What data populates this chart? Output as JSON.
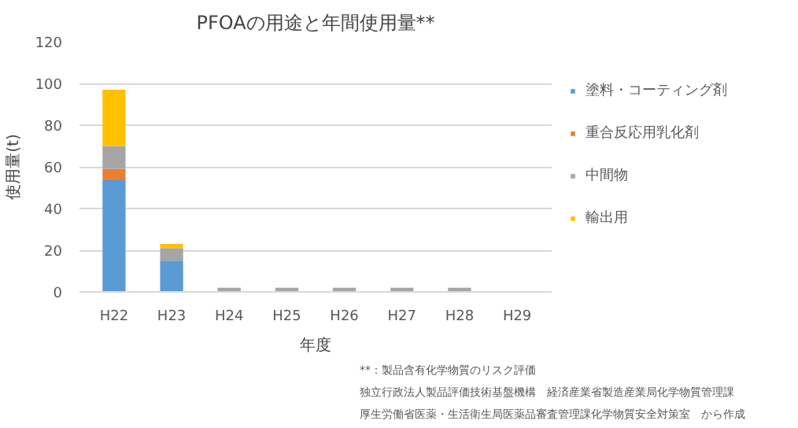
{
  "chart_data": {
    "type": "bar",
    "title": "PFOAの用途と年間使用量**",
    "xlabel": "年度",
    "ylabel": "使用量(t)",
    "categories": [
      "H22",
      "H23",
      "H24",
      "H25",
      "H26",
      "H27",
      "H28",
      "H29"
    ],
    "series": [
      {
        "name": "塗料・コーティング剤",
        "color": "#5b9bd5",
        "values": [
          54,
          15,
          0,
          0,
          0,
          0,
          0,
          0
        ]
      },
      {
        "name": "重合反応用乳化剤",
        "color": "#ed7d31",
        "values": [
          5,
          0,
          0,
          0,
          0,
          0,
          0,
          0
        ]
      },
      {
        "name": "中間物",
        "color": "#a5a5a5",
        "values": [
          11,
          6,
          2,
          2,
          2,
          2,
          2,
          0
        ]
      },
      {
        "name": "輸出用",
        "color": "#ffc000",
        "values": [
          27,
          2,
          0,
          0,
          0,
          0,
          0,
          0
        ]
      }
    ],
    "stacked": true,
    "ylim": [
      0,
      120
    ],
    "yticks": [
      0,
      20,
      40,
      60,
      80,
      100,
      120
    ],
    "grid": "y",
    "legend": "right",
    "annotations": [
      "**：製品含有化学物質のリスク評価",
      "独立行政法人製品評価技術基盤機構　経済産業省製造産業局化学物質管理課",
      "厚生労働省医薬・生活衛生局医薬品審査管理課化学物質安全対策室　から作成"
    ]
  }
}
